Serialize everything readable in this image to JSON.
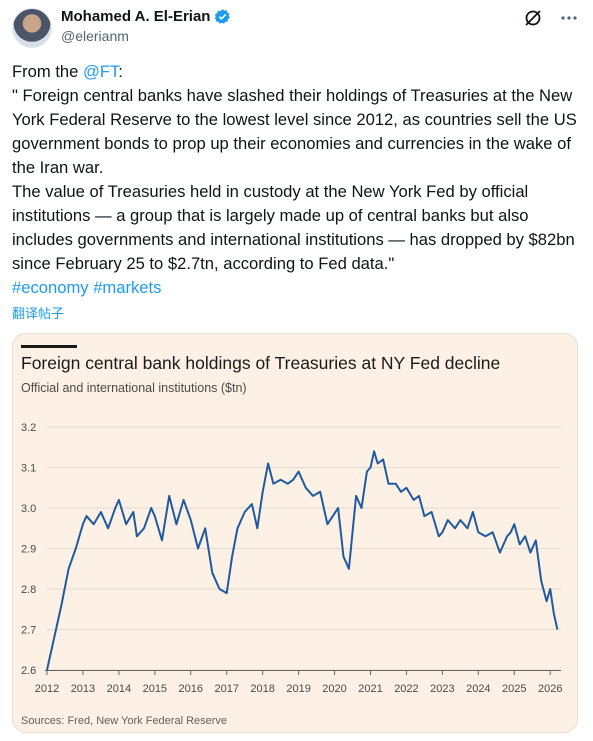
{
  "tweet": {
    "author_name": "Mohamed A. El-Erian",
    "handle": "@elerianm",
    "intro_prefix": "From the ",
    "intro_mention": "@FT",
    "intro_suffix": ":",
    "paragraph_1": "\" Foreign central banks have slashed their holdings of Treasuries at the New York Federal Reserve to the lowest level since 2012, as countries sell the US government bonds to prop up their economies and currencies in the wake of the Iran war.",
    "paragraph_2": "The value of Treasuries held in custody at the New York Fed by official institutions — a group that is largely made up of central banks but also includes governments and international institutions — has dropped by $82bn since February 25 to $2.7tn, according to Fed data.\"",
    "hashtag_1": "#economy",
    "hashtag_2": "#markets",
    "translate_label": "翻译帖子"
  },
  "icons": {
    "verified": "verified-badge-icon",
    "grok": "grok-icon",
    "more": "more-options-icon"
  },
  "colors": {
    "link": "#1d9bf0",
    "line": "#1f5aa0",
    "card_bg": "#fdf1e5"
  },
  "chart_data": {
    "type": "line",
    "title": "Foreign central bank holdings of Treasuries at NY Fed decline",
    "ylabel": "Official and international institutions ($tn)",
    "source": "Sources: Fred, New York Federal Reserve",
    "yticks": [
      "3.2",
      "3.1",
      "3.0",
      "2.9",
      "2.8",
      "2.7",
      "2.6"
    ],
    "xticks": [
      "2012",
      "2013",
      "2014",
      "2015",
      "2016",
      "2017",
      "2018",
      "2019",
      "2020",
      "2021",
      "2022",
      "2023",
      "2024",
      "2025",
      "2026"
    ],
    "ylim": [
      2.6,
      3.2
    ],
    "xlim": [
      2012,
      2026.3
    ],
    "grid": true,
    "series": [
      {
        "x": [
          2012.0,
          2012.2,
          2012.4,
          2012.6,
          2012.8,
          2013.0,
          2013.1,
          2013.3,
          2013.5,
          2013.7,
          2013.9,
          2014.0,
          2014.2,
          2014.4,
          2014.5,
          2014.7,
          2014.9,
          2015.0,
          2015.2,
          2015.4,
          2015.6,
          2015.8,
          2016.0,
          2016.2,
          2016.4,
          2016.6,
          2016.8,
          2017.0,
          2017.15,
          2017.3,
          2017.5,
          2017.7,
          2017.85,
          2018.0,
          2018.15,
          2018.3,
          2018.5,
          2018.7,
          2018.85,
          2019.0,
          2019.2,
          2019.4,
          2019.6,
          2019.8,
          2019.95,
          2020.1,
          2020.25,
          2020.4,
          2020.6,
          2020.75,
          2020.9,
          2021.0,
          2021.1,
          2021.2,
          2021.35,
          2021.5,
          2021.7,
          2021.85,
          2022.0,
          2022.2,
          2022.35,
          2022.5,
          2022.7,
          2022.9,
          2023.0,
          2023.15,
          2023.35,
          2023.5,
          2023.7,
          2023.85,
          2024.0,
          2024.2,
          2024.4,
          2024.6,
          2024.8,
          2024.9,
          2025.0,
          2025.15,
          2025.3,
          2025.45,
          2025.6,
          2025.75,
          2025.9,
          2026.0,
          2026.1,
          2026.2
        ],
        "y": [
          2.6,
          2.68,
          2.76,
          2.85,
          2.9,
          2.96,
          2.98,
          2.96,
          2.99,
          2.95,
          3.0,
          3.02,
          2.96,
          2.99,
          2.93,
          2.95,
          3.0,
          2.98,
          2.92,
          3.03,
          2.96,
          3.02,
          2.97,
          2.9,
          2.95,
          2.84,
          2.8,
          2.79,
          2.88,
          2.95,
          2.99,
          3.01,
          2.95,
          3.04,
          3.11,
          3.06,
          3.07,
          3.06,
          3.07,
          3.09,
          3.05,
          3.03,
          3.04,
          2.96,
          2.98,
          3.0,
          2.88,
          2.85,
          3.03,
          3.0,
          3.09,
          3.1,
          3.14,
          3.11,
          3.12,
          3.06,
          3.06,
          3.04,
          3.05,
          3.02,
          3.03,
          2.98,
          2.99,
          2.93,
          2.94,
          2.97,
          2.95,
          2.97,
          2.95,
          2.99,
          2.94,
          2.93,
          2.94,
          2.89,
          2.93,
          2.94,
          2.96,
          2.91,
          2.93,
          2.89,
          2.92,
          2.82,
          2.77,
          2.8,
          2.74,
          2.7
        ]
      }
    ]
  }
}
